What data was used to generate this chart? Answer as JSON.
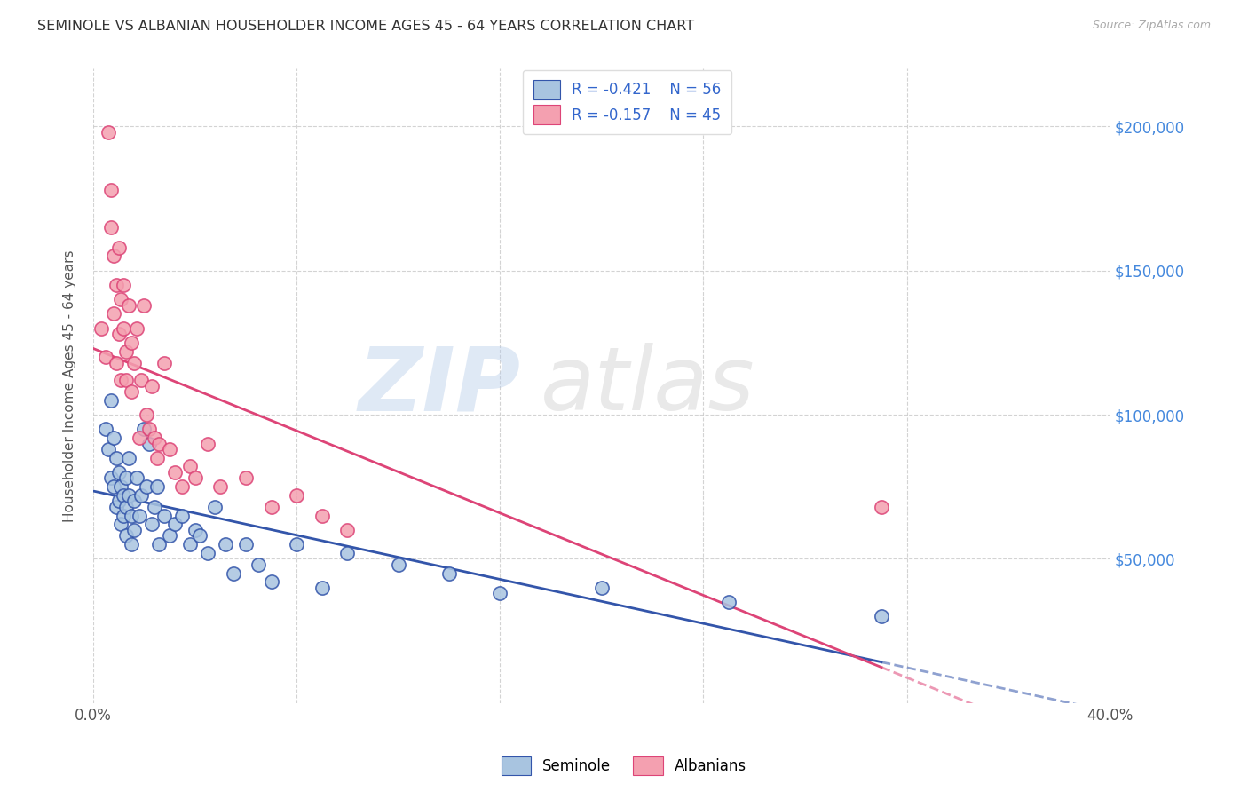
{
  "title": "SEMINOLE VS ALBANIAN HOUSEHOLDER INCOME AGES 45 - 64 YEARS CORRELATION CHART",
  "source": "Source: ZipAtlas.com",
  "ylabel": "Householder Income Ages 45 - 64 years",
  "y_tick_values": [
    50000,
    100000,
    150000,
    200000
  ],
  "xlim": [
    0.0,
    0.4
  ],
  "ylim": [
    0,
    220000
  ],
  "seminole_R": -0.421,
  "seminole_N": 56,
  "albanian_R": -0.157,
  "albanian_N": 45,
  "seminole_color": "#a8c4e0",
  "albanian_color": "#f4a0b0",
  "seminole_line_color": "#3355aa",
  "albanian_line_color": "#dd4477",
  "seminole_scatter_x": [
    0.005,
    0.006,
    0.007,
    0.007,
    0.008,
    0.008,
    0.009,
    0.009,
    0.01,
    0.01,
    0.011,
    0.011,
    0.012,
    0.012,
    0.013,
    0.013,
    0.013,
    0.014,
    0.014,
    0.015,
    0.015,
    0.016,
    0.016,
    0.017,
    0.018,
    0.019,
    0.02,
    0.021,
    0.022,
    0.023,
    0.024,
    0.025,
    0.026,
    0.028,
    0.03,
    0.032,
    0.035,
    0.038,
    0.04,
    0.042,
    0.045,
    0.048,
    0.052,
    0.055,
    0.06,
    0.065,
    0.07,
    0.08,
    0.09,
    0.1,
    0.12,
    0.14,
    0.16,
    0.2,
    0.25,
    0.31
  ],
  "seminole_scatter_y": [
    95000,
    88000,
    105000,
    78000,
    92000,
    75000,
    85000,
    68000,
    80000,
    70000,
    75000,
    62000,
    72000,
    65000,
    78000,
    68000,
    58000,
    85000,
    72000,
    65000,
    55000,
    70000,
    60000,
    78000,
    65000,
    72000,
    95000,
    75000,
    90000,
    62000,
    68000,
    75000,
    55000,
    65000,
    58000,
    62000,
    65000,
    55000,
    60000,
    58000,
    52000,
    68000,
    55000,
    45000,
    55000,
    48000,
    42000,
    55000,
    40000,
    52000,
    48000,
    45000,
    38000,
    40000,
    35000,
    30000
  ],
  "albanian_scatter_x": [
    0.003,
    0.005,
    0.006,
    0.007,
    0.007,
    0.008,
    0.008,
    0.009,
    0.009,
    0.01,
    0.01,
    0.011,
    0.011,
    0.012,
    0.012,
    0.013,
    0.013,
    0.014,
    0.015,
    0.015,
    0.016,
    0.017,
    0.018,
    0.019,
    0.02,
    0.021,
    0.022,
    0.023,
    0.024,
    0.025,
    0.026,
    0.028,
    0.03,
    0.032,
    0.035,
    0.038,
    0.04,
    0.045,
    0.05,
    0.06,
    0.07,
    0.08,
    0.09,
    0.1,
    0.31
  ],
  "albanian_scatter_y": [
    130000,
    120000,
    198000,
    165000,
    178000,
    155000,
    135000,
    118000,
    145000,
    128000,
    158000,
    140000,
    112000,
    145000,
    130000,
    122000,
    112000,
    138000,
    108000,
    125000,
    118000,
    130000,
    92000,
    112000,
    138000,
    100000,
    95000,
    110000,
    92000,
    85000,
    90000,
    118000,
    88000,
    80000,
    75000,
    82000,
    78000,
    90000,
    75000,
    78000,
    68000,
    72000,
    65000,
    60000,
    68000
  ]
}
